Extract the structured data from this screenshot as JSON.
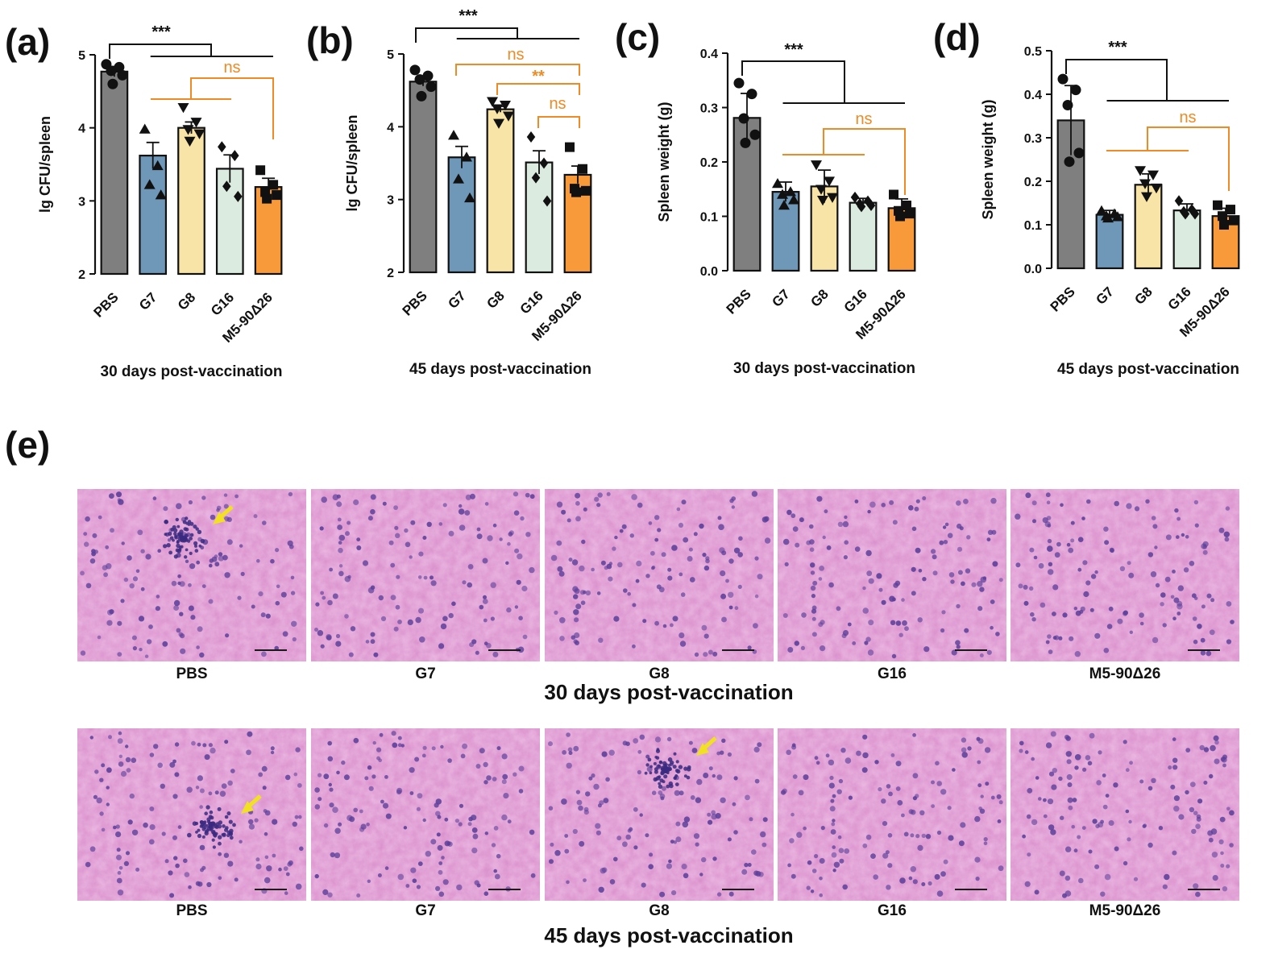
{
  "colors": {
    "PBS": "#7f7f7f",
    "G7": "#6e97b8",
    "G8": "#f8e4a6",
    "G16": "#dcebe0",
    "M5": "#f99a3a",
    "sig_black": "#111111",
    "sig_orange": "#f08a24",
    "tissue_base": "#d98ecb",
    "nuclei": "#5b3f99",
    "arrow": "#f2e022"
  },
  "chart_data": [
    {
      "panel": "(a)",
      "type": "bar",
      "categories": [
        "PBS",
        "G7",
        "G8",
        "G16",
        "M5-90Δ26"
      ],
      "values": [
        4.77,
        3.62,
        4.0,
        3.44,
        3.19
      ],
      "errors": [
        0.07,
        0.18,
        0.08,
        0.19,
        0.12
      ],
      "points": [
        [
          4.87,
          4.83,
          4.78,
          4.72,
          4.6
        ],
        [
          3.98,
          3.48,
          3.22,
          3.08
        ],
        [
          4.28,
          4.08,
          3.98,
          3.92,
          3.82
        ],
        [
          3.74,
          3.62,
          3.2,
          3.06
        ],
        [
          3.42,
          3.22,
          3.12,
          3.08,
          3.03
        ]
      ],
      "markers": [
        "circle",
        "triangle",
        "triangle-down",
        "diamond",
        "square"
      ],
      "ylabel": "lg CFU/spleen",
      "xlabel": "30 days post-vaccination",
      "ylim": [
        2,
        5
      ],
      "yticks": [
        "2",
        "3",
        "4",
        "5"
      ],
      "significance": [
        {
          "label": "***",
          "color": "black"
        },
        {
          "label": "ns",
          "color": "orange"
        }
      ]
    },
    {
      "panel": "(b)",
      "type": "bar",
      "categories": [
        "PBS",
        "G7",
        "G8",
        "G16",
        "M5-90Δ26"
      ],
      "values": [
        4.62,
        3.58,
        4.24,
        3.51,
        3.34
      ],
      "errors": [
        0.06,
        0.15,
        0.04,
        0.16,
        0.12
      ],
      "points": [
        [
          4.78,
          4.7,
          4.65,
          4.55,
          4.42
        ],
        [
          3.88,
          3.58,
          3.28,
          3.02
        ],
        [
          4.35,
          4.3,
          4.25,
          4.15,
          4.05
        ],
        [
          3.86,
          3.5,
          3.3,
          2.98
        ],
        [
          3.72,
          3.42,
          3.15,
          3.12,
          3.1
        ]
      ],
      "markers": [
        "circle",
        "triangle",
        "triangle-down",
        "diamond",
        "square"
      ],
      "ylabel": "lg CFU/spleen",
      "xlabel": "45 days post-vaccination",
      "ylim": [
        2,
        5
      ],
      "yticks": [
        "2",
        "3",
        "4",
        "5"
      ],
      "significance": [
        {
          "label": "***",
          "color": "black"
        },
        {
          "label": "ns",
          "color": "orange"
        },
        {
          "label": "**",
          "color": "orange"
        },
        {
          "label": "ns",
          "color": "orange"
        }
      ]
    },
    {
      "panel": "(c)",
      "type": "bar",
      "categories": [
        "PBS",
        "G7",
        "G8",
        "G16",
        "M5-90Δ26"
      ],
      "values": [
        0.281,
        0.145,
        0.155,
        0.125,
        0.115
      ],
      "errors": [
        0.045,
        0.018,
        0.03,
        0.008,
        0.017
      ],
      "points": [
        [
          0.345,
          0.325,
          0.28,
          0.25,
          0.235
        ],
        [
          0.16,
          0.145,
          0.14,
          0.13,
          0.12
        ],
        [
          0.195,
          0.165,
          0.15,
          0.135,
          0.13
        ],
        [
          0.135,
          0.128,
          0.123,
          0.12,
          0.118
        ],
        [
          0.14,
          0.12,
          0.11,
          0.105,
          0.1
        ]
      ],
      "markers": [
        "circle",
        "triangle",
        "triangle-down",
        "diamond",
        "square"
      ],
      "ylabel": "Spleen weight (g)",
      "xlabel": "30 days post-vaccination",
      "ylim": [
        0,
        0.4
      ],
      "yticks": [
        "0.0",
        "0.1",
        "0.2",
        "0.3",
        "0.4"
      ],
      "significance": [
        {
          "label": "***",
          "color": "black"
        },
        {
          "label": "ns",
          "color": "orange"
        }
      ]
    },
    {
      "panel": "(d)",
      "type": "bar",
      "categories": [
        "PBS",
        "G7",
        "G8",
        "G16",
        "M5-90Δ26"
      ],
      "values": [
        0.34,
        0.123,
        0.192,
        0.133,
        0.12
      ],
      "errors": [
        0.08,
        0.01,
        0.025,
        0.015,
        0.018
      ],
      "points": [
        [
          0.435,
          0.41,
          0.375,
          0.265,
          0.245
        ],
        [
          0.132,
          0.125,
          0.12,
          0.118,
          0.115
        ],
        [
          0.225,
          0.215,
          0.195,
          0.185,
          0.165
        ],
        [
          0.155,
          0.135,
          0.13,
          0.125,
          0.125
        ],
        [
          0.145,
          0.135,
          0.12,
          0.11,
          0.1
        ]
      ],
      "markers": [
        "circle",
        "triangle",
        "triangle-down",
        "diamond",
        "square"
      ],
      "ylabel": "Spleen weight (g)",
      "xlabel": "45 days post-vaccination",
      "ylim": [
        0,
        0.5
      ],
      "yticks": [
        "0.0",
        "0.1",
        "0.2",
        "0.3",
        "0.4",
        "0.5"
      ],
      "significance": [
        {
          "label": "***",
          "color": "black"
        },
        {
          "label": "ns",
          "color": "orange"
        }
      ]
    }
  ],
  "histology": {
    "panel": "(e)",
    "rows": [
      {
        "caption": "30 days post-vaccination",
        "labels": [
          "PBS",
          "G7",
          "G8",
          "G16",
          "M5-90Δ26"
        ],
        "lesion": [
          true,
          false,
          false,
          false,
          false
        ]
      },
      {
        "caption": "45 days post-vaccination",
        "labels": [
          "PBS",
          "G7",
          "G8",
          "G16",
          "M5-90Δ26"
        ],
        "lesion": [
          true,
          false,
          true,
          false,
          false
        ]
      }
    ]
  }
}
